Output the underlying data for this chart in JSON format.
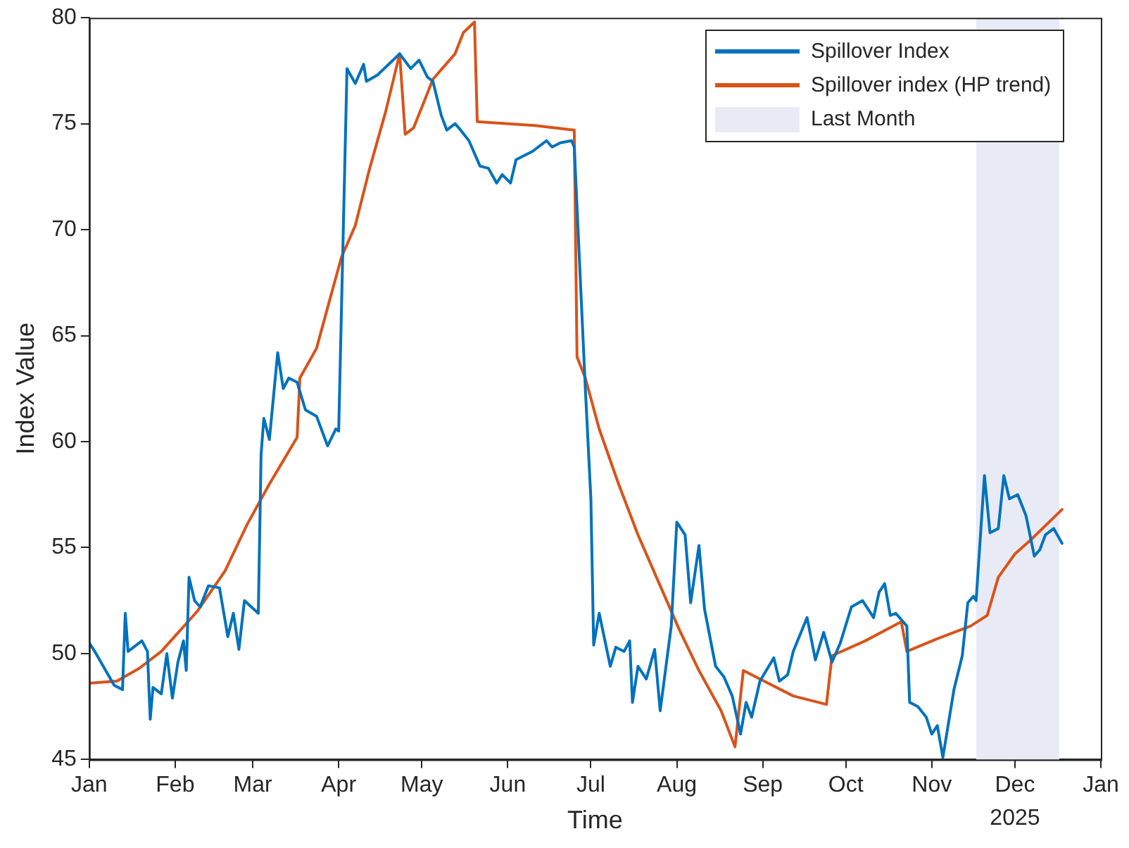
{
  "chart_data": {
    "type": "line",
    "xlabel": "Time",
    "ylabel": "Index Value",
    "xlim": [
      "2025-01-01",
      "2026-01-01"
    ],
    "xticks": [
      {
        "value": "2025-01-01",
        "label": "Jan"
      },
      {
        "value": "2025-02-01",
        "label": "Feb"
      },
      {
        "value": "2025-03-01",
        "label": "Mar"
      },
      {
        "value": "2025-04-01",
        "label": "Apr"
      },
      {
        "value": "2025-05-01",
        "label": "May"
      },
      {
        "value": "2025-06-01",
        "label": "Jun"
      },
      {
        "value": "2025-07-01",
        "label": "Jul"
      },
      {
        "value": "2025-08-01",
        "label": "Aug"
      },
      {
        "value": "2025-09-01",
        "label": "Sep"
      },
      {
        "value": "2025-10-01",
        "label": "Oct"
      },
      {
        "value": "2025-11-01",
        "label": "Nov"
      },
      {
        "value": "2025-12-01",
        "label": "Dec"
      },
      {
        "value": "2026-01-01",
        "label": "Jan"
      }
    ],
    "ylim": [
      45,
      80
    ],
    "yticks": [
      45,
      50,
      55,
      60,
      65,
      70,
      75,
      80
    ],
    "grid": false,
    "legend": "top right",
    "marker": "none",
    "line_style": "solid",
    "annotations": [
      "2025"
    ],
    "bands": [
      {
        "axis": "x",
        "from": "2025-11-17",
        "to": "2025-12-17",
        "label": "Last Month",
        "color": "#e8ebf5"
      }
    ],
    "series": [
      {
        "name": "Spillover Index",
        "color": "#0072bd",
        "x": [
          "2025-01-01",
          "2025-01-03",
          "2025-01-10",
          "2025-01-13",
          "2025-01-14",
          "2025-01-15",
          "2025-01-20",
          "2025-01-22",
          "2025-01-23",
          "2025-01-24",
          "2025-01-27",
          "2025-01-29",
          "2025-01-31",
          "2025-02-02",
          "2025-02-04",
          "2025-02-05",
          "2025-02-06",
          "2025-02-08",
          "2025-02-10",
          "2025-02-13",
          "2025-02-17",
          "2025-02-20",
          "2025-02-22",
          "2025-02-24",
          "2025-02-26",
          "2025-03-03",
          "2025-03-04",
          "2025-03-05",
          "2025-03-07",
          "2025-03-10",
          "2025-03-12",
          "2025-03-14",
          "2025-03-17",
          "2025-03-20",
          "2025-03-24",
          "2025-03-28",
          "2025-03-31",
          "2025-04-01",
          "2025-04-04",
          "2025-04-07",
          "2025-04-10",
          "2025-04-11",
          "2025-04-15",
          "2025-04-23",
          "2025-04-27",
          "2025-04-30",
          "2025-05-03",
          "2025-05-05",
          "2025-05-08",
          "2025-05-10",
          "2025-05-13",
          "2025-05-15",
          "2025-05-18",
          "2025-05-22",
          "2025-05-25",
          "2025-05-28",
          "2025-05-30",
          "2025-06-02",
          "2025-06-04",
          "2025-06-10",
          "2025-06-15",
          "2025-06-17",
          "2025-06-20",
          "2025-06-24",
          "2025-06-25",
          "2025-06-29",
          "2025-07-01",
          "2025-07-02",
          "2025-07-04",
          "2025-07-08",
          "2025-07-10",
          "2025-07-13",
          "2025-07-15",
          "2025-07-16",
          "2025-07-18",
          "2025-07-21",
          "2025-07-24",
          "2025-07-26",
          "2025-07-30",
          "2025-08-01",
          "2025-08-04",
          "2025-08-06",
          "2025-08-09",
          "2025-08-11",
          "2025-08-15",
          "2025-08-18",
          "2025-08-21",
          "2025-08-24",
          "2025-08-26",
          "2025-08-28",
          "2025-08-31",
          "2025-09-05",
          "2025-09-07",
          "2025-09-10",
          "2025-09-12",
          "2025-09-17",
          "2025-09-20",
          "2025-09-23",
          "2025-09-26",
          "2025-09-29",
          "2025-10-03",
          "2025-10-07",
          "2025-10-11",
          "2025-10-13",
          "2025-10-15",
          "2025-10-17",
          "2025-10-19",
          "2025-10-21",
          "2025-10-23",
          "2025-10-24",
          "2025-10-27",
          "2025-10-30",
          "2025-11-01",
          "2025-11-03",
          "2025-11-05",
          "2025-11-09",
          "2025-11-12",
          "2025-11-14",
          "2025-11-16",
          "2025-11-17",
          "2025-11-20",
          "2025-11-22",
          "2025-11-25",
          "2025-11-27",
          "2025-11-29",
          "2025-12-02",
          "2025-12-05",
          "2025-12-08",
          "2025-12-10",
          "2025-12-12",
          "2025-12-15",
          "2025-12-18"
        ],
        "values": [
          50.5,
          50.1,
          48.5,
          48.3,
          51.9,
          50.1,
          50.6,
          50.1,
          46.9,
          48.4,
          48.1,
          50.0,
          47.9,
          49.6,
          50.6,
          49.2,
          53.6,
          52.5,
          52.2,
          53.2,
          53.1,
          50.8,
          51.9,
          50.2,
          52.5,
          51.9,
          59.4,
          61.1,
          60.1,
          64.2,
          62.5,
          63.0,
          62.8,
          61.5,
          61.2,
          59.8,
          60.6,
          60.5,
          77.6,
          76.9,
          77.8,
          77.0,
          77.3,
          78.3,
          77.6,
          78.0,
          77.2,
          77.0,
          75.4,
          74.7,
          75.0,
          74.7,
          74.2,
          73.0,
          72.9,
          72.2,
          72.6,
          72.2,
          73.3,
          73.7,
          74.2,
          73.9,
          74.1,
          74.2,
          73.9,
          62.5,
          57.3,
          50.4,
          51.9,
          49.4,
          50.3,
          50.1,
          50.6,
          47.7,
          49.4,
          48.8,
          50.2,
          47.3,
          51.3,
          56.2,
          55.6,
          52.4,
          55.1,
          52.1,
          49.4,
          48.9,
          48.0,
          46.2,
          47.7,
          47.0,
          48.7,
          49.8,
          48.7,
          49.0,
          50.1,
          51.7,
          49.7,
          51.0,
          49.6,
          50.5,
          52.2,
          52.5,
          51.7,
          52.9,
          53.3,
          51.8,
          51.9,
          51.6,
          51.3,
          47.7,
          47.5,
          47.0,
          46.2,
          46.6,
          45.1,
          48.3,
          49.9,
          52.4,
          52.7,
          52.5,
          58.4,
          55.7,
          55.9,
          58.4,
          57.3,
          57.5,
          56.5,
          54.6,
          54.9,
          55.6,
          55.9,
          55.2
        ]
      },
      {
        "name": "Spillover index (HP trend)",
        "color": "#d95319",
        "x": [
          "2025-01-01",
          "2025-01-11",
          "2025-01-19",
          "2025-01-27",
          "2025-02-09",
          "2025-02-19",
          "2025-02-27",
          "2025-03-07",
          "2025-03-12",
          "2025-03-17",
          "2025-03-18",
          "2025-03-24",
          "2025-03-29",
          "2025-04-02",
          "2025-04-07",
          "2025-04-12",
          "2025-04-18",
          "2025-04-23",
          "2025-04-25",
          "2025-04-28",
          "2025-05-02",
          "2025-05-05",
          "2025-05-09",
          "2025-05-13",
          "2025-05-16",
          "2025-05-20",
          "2025-05-21",
          "2025-06-12",
          "2025-06-25",
          "2025-06-26",
          "2025-06-29",
          "2025-07-04",
          "2025-07-11",
          "2025-07-18",
          "2025-07-25",
          "2025-08-02",
          "2025-08-09",
          "2025-08-17",
          "2025-08-22",
          "2025-08-25",
          "2025-09-12",
          "2025-09-24",
          "2025-09-26",
          "2025-10-08",
          "2025-10-21",
          "2025-10-23",
          "2025-11-03",
          "2025-11-15",
          "2025-11-21",
          "2025-11-25",
          "2025-12-01",
          "2025-12-07",
          "2025-12-18"
        ],
        "values": [
          48.6,
          48.7,
          49.3,
          50.1,
          52.0,
          53.9,
          56.1,
          58.0,
          59.1,
          60.2,
          63.0,
          64.4,
          66.8,
          68.7,
          70.2,
          72.8,
          75.6,
          78.3,
          74.5,
          74.8,
          76.1,
          77.1,
          77.7,
          78.3,
          79.3,
          79.8,
          75.1,
          74.9,
          74.7,
          64.0,
          63.0,
          60.6,
          58.0,
          55.6,
          53.5,
          51.1,
          49.2,
          47.3,
          45.6,
          49.2,
          48.0,
          47.6,
          49.9,
          50.6,
          51.5,
          50.1,
          50.7,
          51.3,
          51.8,
          53.6,
          54.7,
          55.4,
          56.8
        ]
      }
    ]
  }
}
